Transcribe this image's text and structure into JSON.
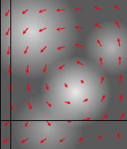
{
  "chart_data": {
    "type": "vector",
    "x": [
      12,
      35,
      58,
      81,
      104,
      127,
      150,
      12,
      35,
      58,
      81,
      104,
      127,
      150,
      12,
      35,
      58,
      81,
      104,
      127,
      150,
      12,
      35,
      58,
      81,
      104,
      127,
      150,
      12,
      35,
      58,
      81,
      104,
      127,
      150,
      12,
      35,
      58,
      81,
      104,
      127,
      150,
      12,
      35,
      58,
      81,
      104,
      127,
      150,
      12,
      35,
      58,
      81,
      104,
      127,
      150
    ],
    "y": [
      174,
      174,
      174,
      174,
      174,
      174,
      174,
      151,
      151,
      151,
      151,
      151,
      151,
      151,
      128,
      128,
      128,
      128,
      128,
      128,
      128,
      105,
      105,
      105,
      105,
      105,
      105,
      105,
      82,
      82,
      82,
      82,
      82,
      82,
      82,
      59,
      59,
      59,
      59,
      59,
      59,
      59,
      36,
      36,
      36,
      36,
      36,
      36,
      36,
      13,
      13,
      13,
      13,
      13,
      13,
      13
    ],
    "u": [
      -5,
      -7,
      -9,
      -10,
      -10,
      -9,
      -7,
      -4,
      -6,
      -9,
      -10,
      -10,
      -8,
      -5,
      -2,
      -4,
      -7,
      -9,
      -10,
      -5,
      -2,
      0,
      -1,
      -3,
      -7,
      -8,
      -1,
      0,
      1,
      1,
      2,
      3,
      -2,
      2,
      2,
      3,
      4,
      6,
      7,
      6,
      4,
      3,
      -6,
      -3,
      5,
      8,
      9,
      7,
      5,
      -8,
      -8,
      -7,
      -6,
      -5,
      -3,
      -2
    ],
    "v": [
      -8,
      -5,
      -3,
      -1,
      1,
      3,
      5,
      -9,
      -7,
      -4,
      -2,
      1,
      5,
      8,
      -10,
      -9,
      -7,
      -3,
      2,
      8,
      10,
      -10,
      -10,
      -9,
      -5,
      4,
      9,
      10,
      -10,
      -9,
      -8,
      -5,
      4,
      8,
      10,
      -9,
      -9,
      -6,
      -2,
      3,
      8,
      9,
      -7,
      -8,
      -7,
      -2,
      2,
      6,
      8,
      -5,
      -5,
      -5,
      -4,
      -2,
      3,
      6
    ],
    "color": "#ff0000",
    "xlim": [
      0,
      159
    ],
    "ylim": [
      0,
      186
    ],
    "xticks": [
      13
    ],
    "yticks": [
      36
    ],
    "grid": true,
    "tick_labels": false
  }
}
